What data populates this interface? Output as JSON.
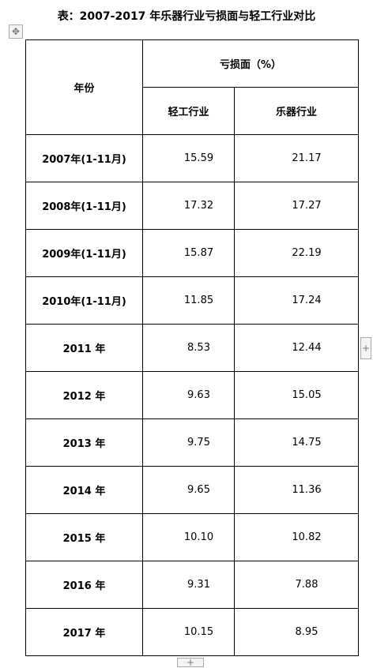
{
  "title": "表：2007-2017 年乐器行业亏损面与轻工行业对比",
  "table": {
    "header": {
      "year": "年份",
      "group": "亏损面（%）",
      "columns": [
        "轻工行业",
        "乐器行业"
      ]
    },
    "rows": [
      [
        "2007年(1-11月)",
        "15.59",
        "21.17"
      ],
      [
        "2008年(1-11月)",
        "17.32",
        "17.27"
      ],
      [
        "2009年(1-11月)",
        "15.87",
        "22.19"
      ],
      [
        "2010年(1-11月)",
        "11.85",
        "17.24"
      ],
      [
        "2011 年",
        "8.53",
        "12.44"
      ],
      [
        "2012 年",
        "9.63",
        "15.05"
      ],
      [
        "2013 年",
        "9.75",
        "14.75"
      ],
      [
        "2014 年",
        "9.65",
        "11.36"
      ],
      [
        "2015 年",
        "10.10",
        "10.82"
      ],
      [
        "2016 年",
        "9.31",
        "7.88"
      ],
      [
        "2017 年",
        "10.15",
        "8.95"
      ]
    ]
  }
}
